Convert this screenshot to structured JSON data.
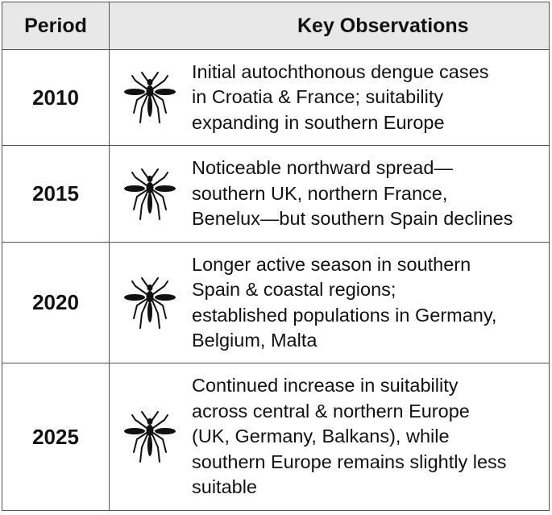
{
  "table": {
    "header": [
      "Period",
      "Key Observations"
    ],
    "rows": [
      {
        "period": "2010",
        "observations": [
          "Initial autochthonous dengue cases",
          "in Croatia & France; suitability",
          "expanding in southern Europe"
        ]
      },
      {
        "period": "2015",
        "observations": [
          "Noticeable northward spread—",
          "southern UK, northern France,",
          "Benelux—but southern Spain declines"
        ]
      },
      {
        "period": "2020",
        "observations": [
          "Longer active season in southern",
          "Spain & coastal regions;",
          "established populations in Germany,",
          "Belgium, Malta"
        ]
      },
      {
        "period": "2025",
        "observations": [
          "Continued increase in suitability",
          "across central & northern Europe",
          "(UK, Germany, Balkans), while",
          "southern Europe remains slightly less",
          "suitable"
        ]
      }
    ]
  }
}
